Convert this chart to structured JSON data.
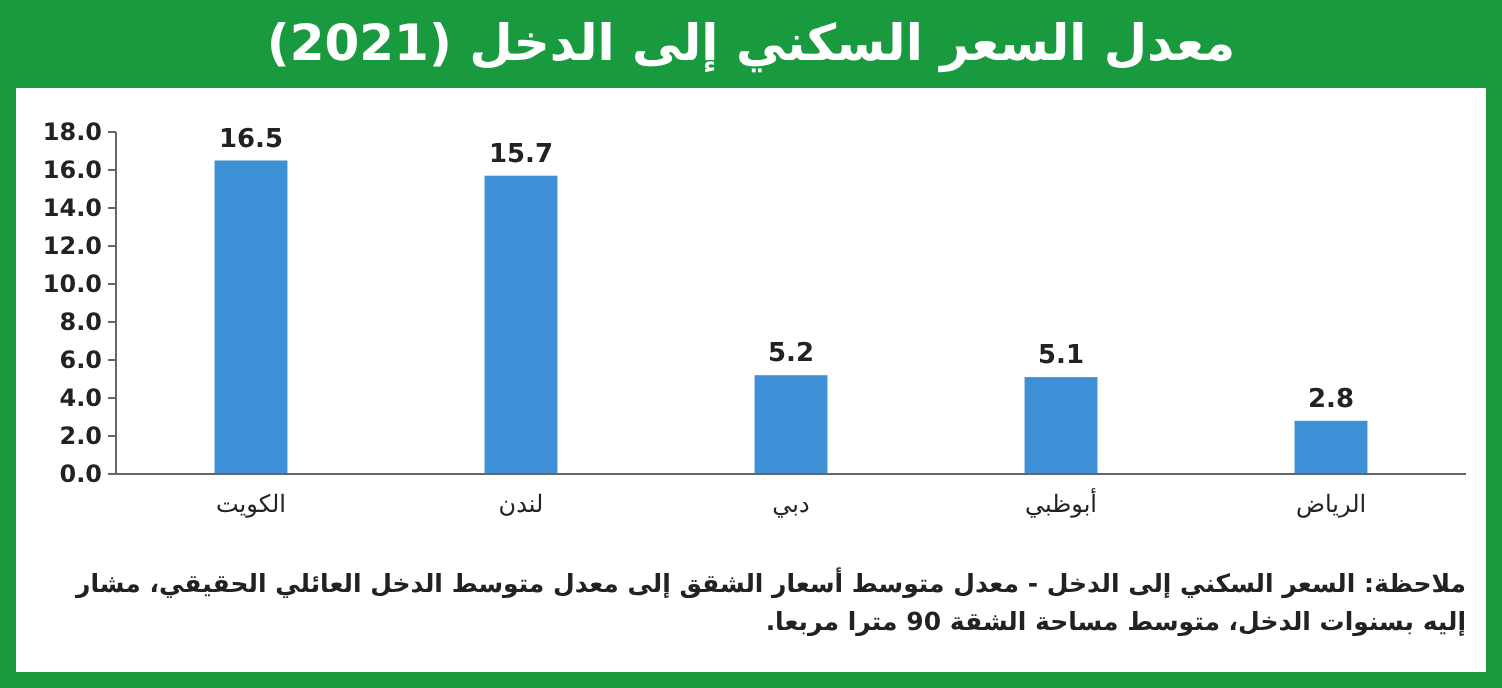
{
  "chart_data": {
    "type": "bar",
    "title": "معدل السعر السكني إلى الدخل (2021)",
    "categories": [
      "الكويت",
      "لندن",
      "دبي",
      "أبوظبي",
      "الرياض"
    ],
    "values": [
      16.5,
      15.7,
      5.2,
      5.1,
      2.8
    ],
    "color": "#3d8fd6",
    "ylim": [
      0,
      18
    ],
    "yticks": [
      {
        "value": 0,
        "label": "0.0"
      },
      {
        "value": 2,
        "label": "2.0"
      },
      {
        "value": 4,
        "label": "4.0"
      },
      {
        "value": 6,
        "label": "6.0"
      },
      {
        "value": 8,
        "label": "8.0"
      },
      {
        "value": 10,
        "label": "10.0"
      },
      {
        "value": 12,
        "label": "12.0"
      },
      {
        "value": 14,
        "label": "14.0"
      },
      {
        "value": 16,
        "label": "16.0"
      },
      {
        "value": 18,
        "label": "18.0"
      }
    ],
    "data_labels": true,
    "annotations": [
      "ملاحظة: السعر السكني إلى الدخل - معدل متوسط أسعار الشقق إلى معدل متوسط الدخل العائلي الحقيقي، مشار إليه بسنوات الدخل، متوسط مساحة الشقة 90 مترا مربعا."
    ]
  }
}
